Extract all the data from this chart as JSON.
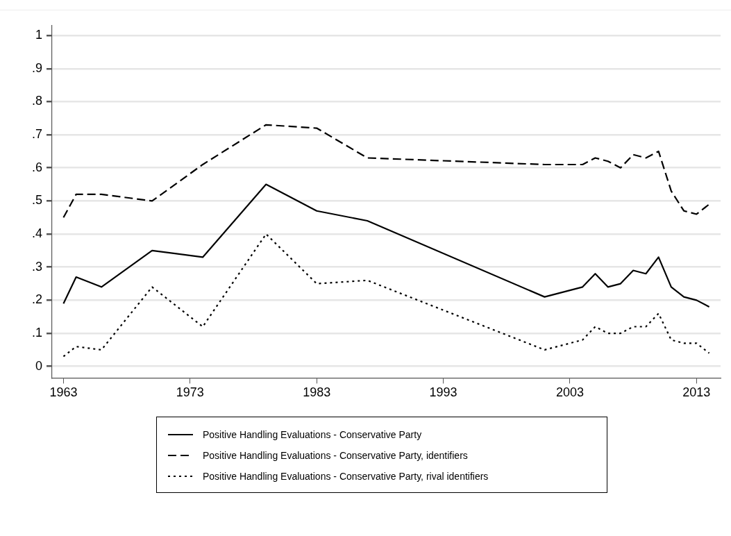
{
  "chart_data": {
    "type": "line",
    "x": [
      1963,
      1964,
      1966,
      1970,
      1974,
      1979,
      1983,
      1987,
      2001,
      2004,
      2005,
      2006,
      2007,
      2008,
      2009,
      2010,
      2011,
      2012,
      2013,
      2014
    ],
    "series": [
      {
        "name": "Positive Handling Evaluations - Conservative Party",
        "color": "#000000",
        "line_style": "solid",
        "values": [
          0.19,
          0.27,
          0.24,
          0.35,
          0.33,
          0.55,
          0.47,
          0.44,
          0.21,
          0.24,
          0.28,
          0.24,
          0.25,
          0.29,
          0.28,
          0.33,
          0.24,
          0.21,
          0.2,
          0.18
        ]
      },
      {
        "name": "Positive Handling Evaluations - Conservative Party, identifiers",
        "color": "#000000",
        "line_style": "dashed",
        "values": [
          0.45,
          0.52,
          0.52,
          0.5,
          0.61,
          0.73,
          0.72,
          0.63,
          0.61,
          0.61,
          0.63,
          0.62,
          0.6,
          0.64,
          0.63,
          0.65,
          0.53,
          0.47,
          0.46,
          0.49
        ]
      },
      {
        "name": "Positive Handling Evaluations - Conservative Party, rival identifiers",
        "color": "#000000",
        "line_style": "dotted",
        "values": [
          0.03,
          0.06,
          0.05,
          0.24,
          0.12,
          0.4,
          0.25,
          0.26,
          0.05,
          0.08,
          0.12,
          0.1,
          0.1,
          0.12,
          0.12,
          0.16,
          0.08,
          0.07,
          0.07,
          0.04
        ]
      }
    ],
    "xlim": [
      1962.1,
      2014.9
    ],
    "xticks": [
      1963,
      1973,
      1983,
      1993,
      2003,
      2013
    ],
    "ylim": [
      -0.035,
      1.03
    ],
    "yticks": [
      {
        "value": 0,
        "label": "0"
      },
      {
        "value": 0.1,
        "label": ".1"
      },
      {
        "value": 0.2,
        "label": ".2"
      },
      {
        "value": 0.3,
        "label": ".3"
      },
      {
        "value": 0.4,
        "label": ".4"
      },
      {
        "value": 0.5,
        "label": ".5"
      },
      {
        "value": 0.6,
        "label": ".6"
      },
      {
        "value": 0.7,
        "label": ".7"
      },
      {
        "value": 0.8,
        "label": ".8"
      },
      {
        "value": 0.9,
        "label": ".9"
      },
      {
        "value": 1,
        "label": "1"
      }
    ],
    "grid": "y",
    "legend": "bottom",
    "marker": "none"
  }
}
